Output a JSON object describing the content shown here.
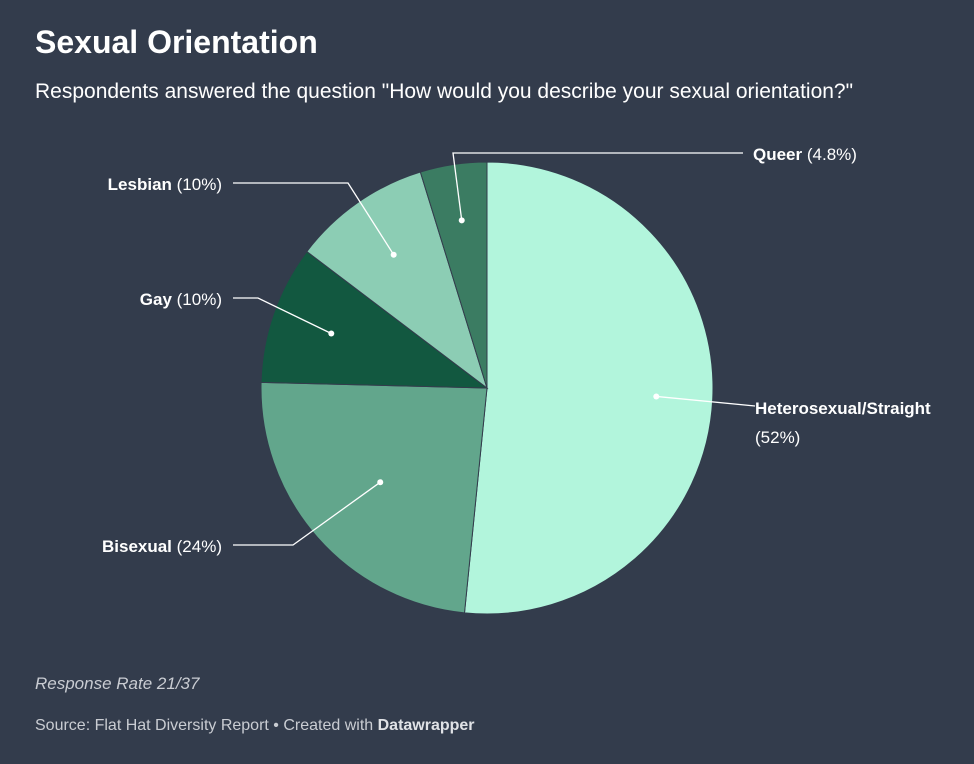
{
  "header": {
    "title": "Sexual Orientation",
    "subtitle": "Respondents answered the question \"How would you describe your sexual orientation?\""
  },
  "chart_data": {
    "type": "pie",
    "title": "Sexual Orientation",
    "subtitle": "Respondents answered the question \"How would you describe your sexual orientation?\"",
    "slices": [
      {
        "label": "Heterosexual/Straight",
        "value": 52,
        "value_label": "(52%)",
        "color": "#b2f5dc"
      },
      {
        "label": "Bisexual",
        "value": 24,
        "value_label": "(24%)",
        "color": "#62a68c"
      },
      {
        "label": "Gay",
        "value": 10,
        "value_label": "(10%)",
        "color": "#125840"
      },
      {
        "label": "Lesbian",
        "value": 10,
        "value_label": "(10%)",
        "color": "#8ccdb4"
      },
      {
        "label": "Queer",
        "value": 4.8,
        "value_label": "(4.8%)",
        "color": "#3b7c62"
      }
    ],
    "start": "12 o'clock",
    "direction": "clockwise",
    "legend": "none (direct labels)"
  },
  "footer": {
    "note": "Response Rate 21/37",
    "source": "Source: Flat Hat Diversity Report • Created with ",
    "brand": "Datawrapper"
  },
  "colors": {
    "background": "#333c4c",
    "text": "#ffffff",
    "muted": "#c9ccd2",
    "leader_line": "#ffffff"
  }
}
